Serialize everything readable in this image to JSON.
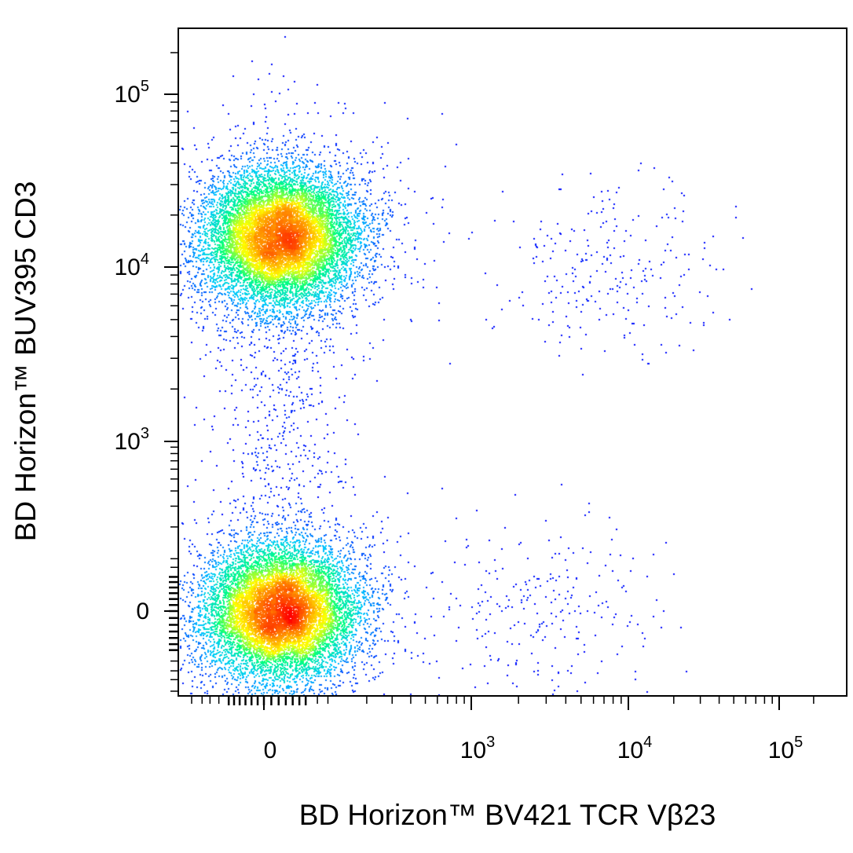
{
  "chart_data": {
    "type": "scatter",
    "xlabel": "BD Horizon™ BV421 TCR Vβ23",
    "ylabel": "BD Horizon™ BUV395 CD3",
    "x_scale": "biexponential",
    "y_scale": "biexponential",
    "xlim": [
      -150,
      250000
    ],
    "ylim": [
      -150,
      250000
    ],
    "x_ticks": [
      {
        "base": "0",
        "exp": "",
        "value": 0
      },
      {
        "base": "10",
        "exp": "3",
        "value": 1000
      },
      {
        "base": "10",
        "exp": "4",
        "value": 10000
      },
      {
        "base": "10",
        "exp": "5",
        "value": 100000
      }
    ],
    "y_ticks": [
      {
        "base": "0",
        "exp": "",
        "value": 0
      },
      {
        "base": "10",
        "exp": "3",
        "value": 1000
      },
      {
        "base": "10",
        "exp": "4",
        "value": 10000
      },
      {
        "base": "10",
        "exp": "5",
        "value": 100000
      }
    ],
    "density_colormap": [
      "#0000ff",
      "#00c8ff",
      "#00ff80",
      "#ffff00",
      "#ff8000",
      "#ff0000"
    ],
    "grid": false,
    "legend": "none",
    "populations": [
      {
        "center_x": 0,
        "center_y": 15000,
        "count": 22000,
        "spread": "dense"
      },
      {
        "center_x": 0,
        "center_y": 0,
        "count": 24000,
        "spread": "dense"
      },
      {
        "center_x": 6000,
        "center_y": 10000,
        "count": 260,
        "spread": "sparse"
      },
      {
        "center_x": 2500,
        "center_y": 0,
        "count": 240,
        "spread": "sparse"
      },
      {
        "center_x": 0,
        "center_y": 2000,
        "count": 700,
        "spread": "bridge"
      }
    ]
  }
}
